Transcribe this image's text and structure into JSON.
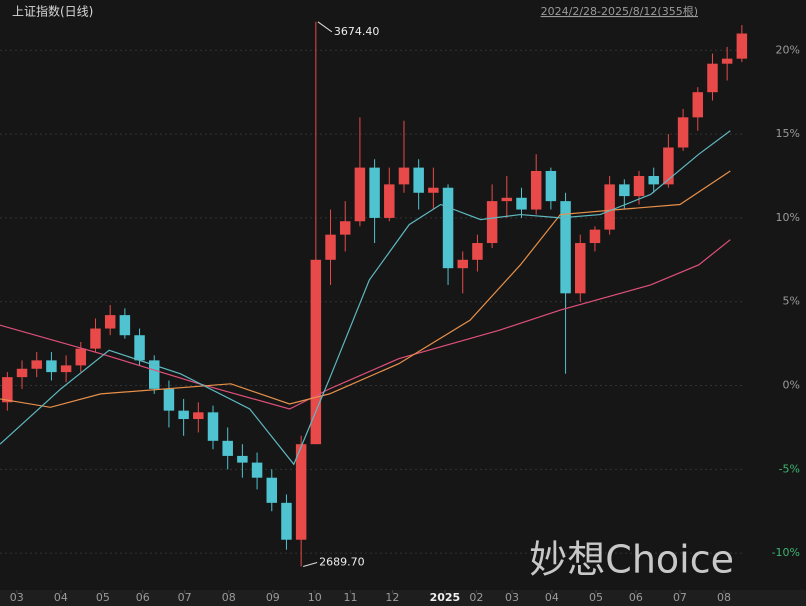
{
  "chart_data": {
    "type": "candlestick",
    "title": "上证指数(日线)",
    "range_label": "2024/2/28-2025/8/12(355根)",
    "watermark": "妙想Choice",
    "up_color": "#e84a4a",
    "down_color": "#4fc3d0",
    "grid": true,
    "xlim": [
      0,
      355
    ],
    "ylim": [
      -12.2,
      23.0
    ],
    "yticks": [
      {
        "value": -10,
        "label": "-10%"
      },
      {
        "value": -5,
        "label": "-5%"
      },
      {
        "value": 0,
        "label": "0%"
      },
      {
        "value": 5,
        "label": "5%"
      },
      {
        "value": 10,
        "label": "10%"
      },
      {
        "value": 15,
        "label": "15%"
      },
      {
        "value": 20,
        "label": "20%"
      }
    ],
    "xticks": [
      {
        "value": 8,
        "label": "03"
      },
      {
        "value": 29,
        "label": "04"
      },
      {
        "value": 49,
        "label": "05"
      },
      {
        "value": 68,
        "label": "06"
      },
      {
        "value": 88,
        "label": "07"
      },
      {
        "value": 109,
        "label": "08"
      },
      {
        "value": 130,
        "label": "09"
      },
      {
        "value": 150,
        "label": "10"
      },
      {
        "value": 167,
        "label": "11"
      },
      {
        "value": 187,
        "label": "12"
      },
      {
        "value": 212,
        "label": "2025"
      },
      {
        "value": 227,
        "label": "02"
      },
      {
        "value": 244,
        "label": "03"
      },
      {
        "value": 263,
        "label": "04"
      },
      {
        "value": 284,
        "label": "05"
      },
      {
        "value": 303,
        "label": "06"
      },
      {
        "value": 324,
        "label": "07"
      },
      {
        "value": 345,
        "label": "08"
      }
    ],
    "x": [
      0,
      7,
      14,
      21,
      28,
      35,
      42,
      49,
      56,
      63,
      70,
      77,
      84,
      91,
      98,
      105,
      112,
      119,
      126,
      133,
      140,
      147,
      154,
      161,
      168,
      175,
      182,
      189,
      196,
      203,
      210,
      217,
      224,
      231,
      238,
      245,
      252,
      259,
      266,
      273,
      280,
      287,
      294,
      301,
      308,
      315,
      322,
      329,
      336,
      343,
      350
    ],
    "open": [
      -1.0,
      0.5,
      1.0,
      1.5,
      0.8,
      1.2,
      2.2,
      3.4,
      4.2,
      3.0,
      1.5,
      -0.2,
      -1.5,
      -2.0,
      -1.6,
      -3.3,
      -4.2,
      -4.6,
      -5.5,
      -7.0,
      -9.2,
      -3.5,
      7.5,
      9.0,
      9.8,
      13.0,
      10.0,
      12.0,
      13.0,
      11.5,
      11.8,
      7.0,
      7.5,
      8.5,
      11.0,
      11.2,
      10.5,
      12.8,
      11.0,
      5.5,
      8.5,
      9.3,
      12.0,
      11.3,
      12.5,
      12.0,
      14.2,
      16.0,
      17.5,
      19.2,
      19.5
    ],
    "high": [
      0.8,
      1.5,
      2.0,
      2.0,
      1.8,
      2.6,
      4.0,
      4.8,
      4.6,
      3.4,
      1.8,
      0.3,
      -0.8,
      -1.0,
      -1.2,
      -2.5,
      -3.5,
      -4.0,
      -5.0,
      -6.5,
      -3.0,
      21.7,
      10.5,
      11.0,
      16.0,
      13.5,
      13.0,
      15.8,
      13.5,
      13.0,
      12.0,
      8.0,
      9.0,
      12.0,
      12.5,
      11.8,
      13.8,
      13.0,
      11.5,
      9.0,
      9.5,
      12.5,
      12.3,
      12.8,
      13.0,
      15.0,
      16.5,
      17.8,
      19.8,
      20.2,
      21.5
    ],
    "low": [
      -1.5,
      -0.2,
      0.5,
      0.3,
      0.2,
      0.8,
      2.0,
      3.0,
      2.8,
      1.2,
      -0.5,
      -2.5,
      -3.0,
      -2.8,
      -3.8,
      -5.0,
      -5.5,
      -6.2,
      -7.5,
      -9.8,
      -10.8,
      -3.5,
      6.0,
      8.0,
      9.5,
      8.5,
      9.8,
      11.5,
      10.5,
      10.5,
      6.0,
      5.5,
      6.8,
      8.2,
      10.0,
      10.0,
      10.2,
      10.5,
      0.7,
      5.0,
      8.0,
      9.0,
      10.5,
      10.8,
      11.5,
      11.8,
      14.0,
      15.2,
      17.0,
      18.2,
      19.3
    ],
    "close": [
      0.5,
      1.0,
      1.5,
      0.8,
      1.2,
      2.2,
      3.4,
      4.2,
      3.0,
      1.5,
      -0.2,
      -1.5,
      -2.0,
      -1.6,
      -3.3,
      -4.2,
      -4.6,
      -5.5,
      -7.0,
      -9.2,
      -3.5,
      7.5,
      9.0,
      9.8,
      13.0,
      10.0,
      12.0,
      13.0,
      11.5,
      11.8,
      7.0,
      7.5,
      8.5,
      11.0,
      11.2,
      10.5,
      12.8,
      11.0,
      5.5,
      8.5,
      9.3,
      12.0,
      11.3,
      12.5,
      12.0,
      14.2,
      16.0,
      17.5,
      19.2,
      19.5,
      21.0
    ],
    "series": [
      {
        "color": "#e0507a",
        "x": [
          0,
          48,
          95,
          138,
          157,
          190,
          238,
          267,
          310,
          333,
          348
        ],
        "values": [
          3.6,
          1.9,
          0.1,
          -1.4,
          -0.2,
          1.6,
          3.3,
          4.5,
          6.0,
          7.2,
          8.7
        ]
      },
      {
        "color": "#e8904a",
        "x": [
          0,
          24,
          48,
          110,
          138,
          157,
          190,
          224,
          248,
          267,
          295,
          324,
          348
        ],
        "values": [
          -0.8,
          -1.3,
          -0.5,
          0.1,
          -1.1,
          -0.5,
          1.3,
          3.9,
          7.2,
          10.2,
          10.5,
          10.8,
          12.8
        ]
      },
      {
        "color": "#5fb8c0",
        "x": [
          0,
          29,
          52,
          86,
          119,
          140,
          157,
          176,
          195,
          210,
          229,
          248,
          267,
          286,
          310,
          333,
          348
        ],
        "values": [
          -3.5,
          -0.2,
          2.1,
          0.7,
          -1.4,
          -4.7,
          0.4,
          6.3,
          9.6,
          10.8,
          9.9,
          10.2,
          10.0,
          10.2,
          11.4,
          13.8,
          15.2
        ]
      }
    ],
    "annotations": [
      {
        "text": "3674.40",
        "x": 147,
        "y": 21.7
      },
      {
        "text": "2689.70",
        "x": 140,
        "y": -10.8
      }
    ]
  }
}
